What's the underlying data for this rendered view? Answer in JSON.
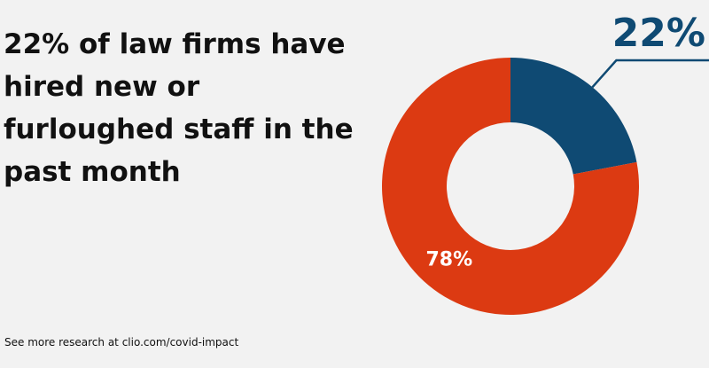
{
  "chart_data": {
    "type": "pie",
    "title": "22% of law firms have hired new or furloughed staff in the past month",
    "values": [
      22,
      78
    ],
    "value_labels": [
      "22%",
      "78%"
    ],
    "colors": [
      "#0f4a73",
      "#dc3a12"
    ],
    "source": "See more research at clio.com/covid-impact"
  }
}
